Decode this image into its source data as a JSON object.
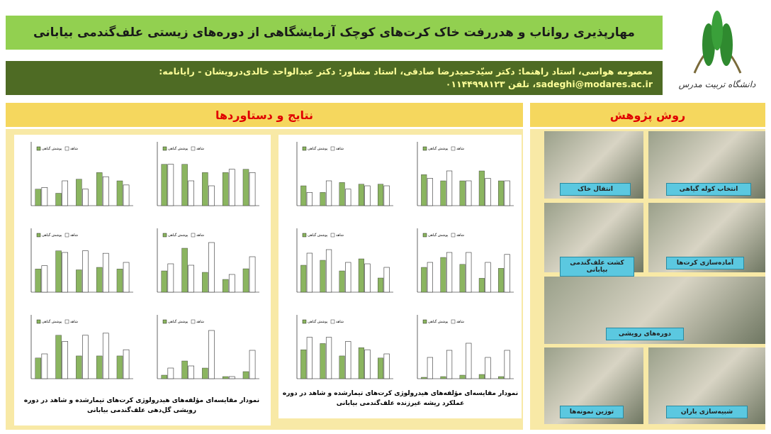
{
  "header": {
    "title": "مهارپذیری رواناب و هدررفت خاک کرت‌های کوچک آزمایشگاهی از دوره‌های زیستی علف‌گندمی بیابانی",
    "authors": "معصومه هواسی، استاد راهنما: دکتر سیّدحمیدرضا صادقی، استاد مشاور: دکتر عبدالواحد خالدی‌درویشان - رایانامه:",
    "contact": "sadeghi@modares.ac.ir، تلفن ۰۱۱۴۴۹۹۸۱۲۳"
  },
  "logo": {
    "text": "دانشگاه تربیت مدرس"
  },
  "results": {
    "heading": "نتایج و دستاوردها",
    "legend": {
      "treated": "پوشش گیاهی",
      "control": "شاهد",
      "treated_color": "#8bb560",
      "control_color": "#ffffff"
    },
    "panels": [
      {
        "caption": "نمودار مقایسه‌ای مؤلفه‌های هیدرولوژی کرت‌های تیمارشده و شاهد در دوره رویشی گل‌دهی علف‌گندمی بیابانی",
        "charts": [
          {
            "ylim": [
              0,
              6
            ],
            "treated": [
              2,
              1.5,
              3.2,
              4,
              3
            ],
            "control": [
              2.2,
              3,
              2,
              3.5,
              2.5
            ]
          },
          {
            "ylim": [
              0,
              30
            ],
            "treated": [
              25,
              25,
              20,
              20,
              22
            ],
            "control": [
              25,
              15,
              12,
              22,
              20
            ]
          },
          {
            "ylim": [
              0,
              600
            ],
            "treated": [
              280,
              500,
              270,
              300,
              280
            ],
            "control": [
              320,
              480,
              500,
              470,
              360
            ]
          },
          {
            "ylim": [
              0,
              700
            ],
            "treated": [
              300,
              620,
              280,
              180,
              330
            ],
            "control": [
              400,
              380,
              700,
              250,
              500
            ]
          },
          {
            "ylim": [
              0,
              120
            ],
            "treated": [
              50,
              105,
              55,
              55,
              55
            ],
            "control": [
              60,
              90,
              105,
              110,
              70
            ]
          },
          {
            "ylim": [
              0,
              7
            ],
            "treated": [
              0.5,
              2.5,
              1.5,
              0.3,
              1
            ],
            "control": [
              1.5,
              1.8,
              6.8,
              0.3,
              4
            ]
          }
        ]
      },
      {
        "caption": "نمودار مقایسه‌ای مؤلفه‌های هیدرولوژی کرت‌های تیمارشده و شاهد در دوره عملکرد ریشه غیرزنده علف‌گندمی بیابانی",
        "charts": [
          {
            "ylim": [
              0,
              3
            ],
            "treated": [
              1.2,
              0.8,
              1.4,
              1.3,
              1.3
            ],
            "control": [
              0.8,
              1.5,
              1,
              1.2,
              1.2
            ]
          },
          {
            "ylim": [
              0,
              40
            ],
            "treated": [
              25,
              20,
              20,
              28,
              20
            ],
            "control": [
              22,
              28,
              20,
              22,
              20
            ]
          },
          {
            "ylim": [
              0,
              700
            ],
            "treated": [
              380,
              450,
              300,
              470,
              200
            ],
            "control": [
              550,
              600,
              420,
              400,
              350
            ]
          },
          {
            "ylim": [
              0,
              5000
            ],
            "treated": [
              2500,
              3500,
              2800,
              1400,
              2400
            ],
            "control": [
              3000,
              4000,
              4000,
              3000,
              3800
            ]
          },
          {
            "ylim": [
              0,
              120
            ],
            "treated": [
              70,
              85,
              55,
              75,
              50
            ],
            "control": [
              100,
              100,
              90,
              70,
              60
            ]
          },
          {
            "ylim": [
              0,
              70
            ],
            "treated": [
              2,
              3,
              5,
              6,
              3
            ],
            "control": [
              30,
              40,
              50,
              30,
              40
            ]
          }
        ]
      }
    ]
  },
  "method": {
    "heading": "روش پژوهش",
    "photos": [
      "انتخاب کوله گیاهی",
      "انتقال خاک",
      "آماده‌سازی کرت‌ها",
      "کشت علف‌گندمی بیابانی",
      "دوره‌های رویشی",
      "شبیه‌سازی باران",
      "توزین نمونه‌ها"
    ]
  }
}
